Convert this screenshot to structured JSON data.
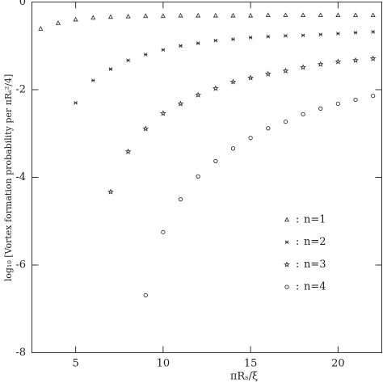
{
  "chart_data": {
    "type": "scatter",
    "x_label": "πRₛ/ξ",
    "y_label": "log₁₀ [Vortex formation probability per πRₛ²/4]",
    "xlim": [
      2.5,
      22.5
    ],
    "xticks": [
      5,
      10,
      15,
      20
    ],
    "ylim": [
      -8,
      0
    ],
    "yticks": [
      0,
      -2,
      -4,
      -6,
      -8
    ],
    "grid": false,
    "legend_position": "lower right",
    "legend_separator": ":",
    "series": [
      {
        "name": "n=1",
        "color": "#333333",
        "marker": "triangle",
        "x": [
          3,
          4,
          5,
          6,
          7,
          8,
          9,
          10,
          11,
          12,
          13,
          14,
          15,
          16,
          17,
          18,
          19,
          20,
          21,
          22
        ],
        "values": [
          -0.61,
          -0.48,
          -0.4,
          -0.36,
          -0.34,
          -0.33,
          -0.32,
          -0.32,
          -0.31,
          -0.31,
          -0.31,
          -0.31,
          -0.31,
          -0.3,
          -0.3,
          -0.3,
          -0.3,
          -0.3,
          -0.3,
          -0.3
        ]
      },
      {
        "name": "n=2",
        "color": "#333333",
        "marker": "cross",
        "x": [
          5,
          6,
          7,
          8,
          9,
          10,
          11,
          12,
          13,
          14,
          15,
          16,
          17,
          18,
          19,
          20,
          21,
          22
        ],
        "values": [
          -2.3,
          -1.79,
          -1.53,
          -1.33,
          -1.2,
          -1.09,
          -1.0,
          -0.94,
          -0.88,
          -0.85,
          -0.81,
          -0.79,
          -0.77,
          -0.76,
          -0.74,
          -0.72,
          -0.7,
          -0.68
        ]
      },
      {
        "name": "n=3",
        "color": "#333333",
        "marker": "star",
        "x": [
          7,
          8,
          9,
          10,
          11,
          12,
          13,
          14,
          15,
          16,
          17,
          18,
          19,
          20,
          21,
          22
        ],
        "values": [
          -4.33,
          -3.41,
          -2.89,
          -2.54,
          -2.32,
          -2.12,
          -1.97,
          -1.82,
          -1.73,
          -1.64,
          -1.57,
          -1.49,
          -1.42,
          -1.36,
          -1.33,
          -1.29
        ]
      },
      {
        "name": "n=4",
        "color": "#333333",
        "marker": "circle",
        "x": [
          9,
          10,
          11,
          12,
          13,
          14,
          15,
          16,
          17,
          18,
          19,
          20,
          21,
          22
        ],
        "values": [
          -6.69,
          -5.25,
          -4.5,
          -3.98,
          -3.63,
          -3.34,
          -3.1,
          -2.88,
          -2.73,
          -2.56,
          -2.43,
          -2.32,
          -2.23,
          -2.14
        ]
      }
    ]
  }
}
